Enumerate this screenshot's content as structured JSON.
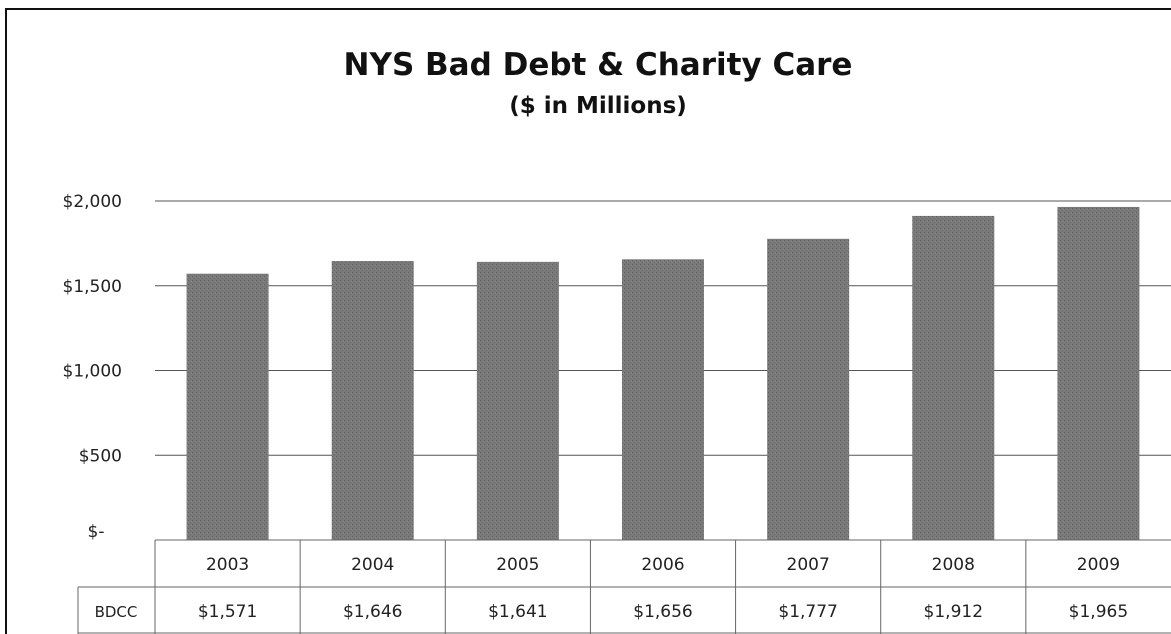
{
  "chart_data": {
    "type": "bar",
    "title": "NYS Bad Debt & Charity Care",
    "subtitle": "($ in Millions)",
    "categories": [
      "2003",
      "2004",
      "2005",
      "2006",
      "2007",
      "2008",
      "2009"
    ],
    "series": [
      {
        "name": "BDCC",
        "values": [
          1571,
          1646,
          1641,
          1656,
          1777,
          1912,
          1965
        ],
        "labels": [
          "$1,571",
          "$1,646",
          "$1,641",
          "$1,656",
          "$1,777",
          "$1,912",
          "$1,965"
        ]
      }
    ],
    "ylim": [
      0,
      2000
    ],
    "yticks": [
      0,
      500,
      1000,
      1500,
      2000
    ],
    "ytick_labels": [
      "$-",
      "$500",
      "$1,000",
      "$1,500",
      "$2,000"
    ],
    "grid": true,
    "legend": "data-table",
    "colors": {
      "bar": "#7a7a7a",
      "grid": "#555555",
      "table_border": "#666666"
    }
  }
}
